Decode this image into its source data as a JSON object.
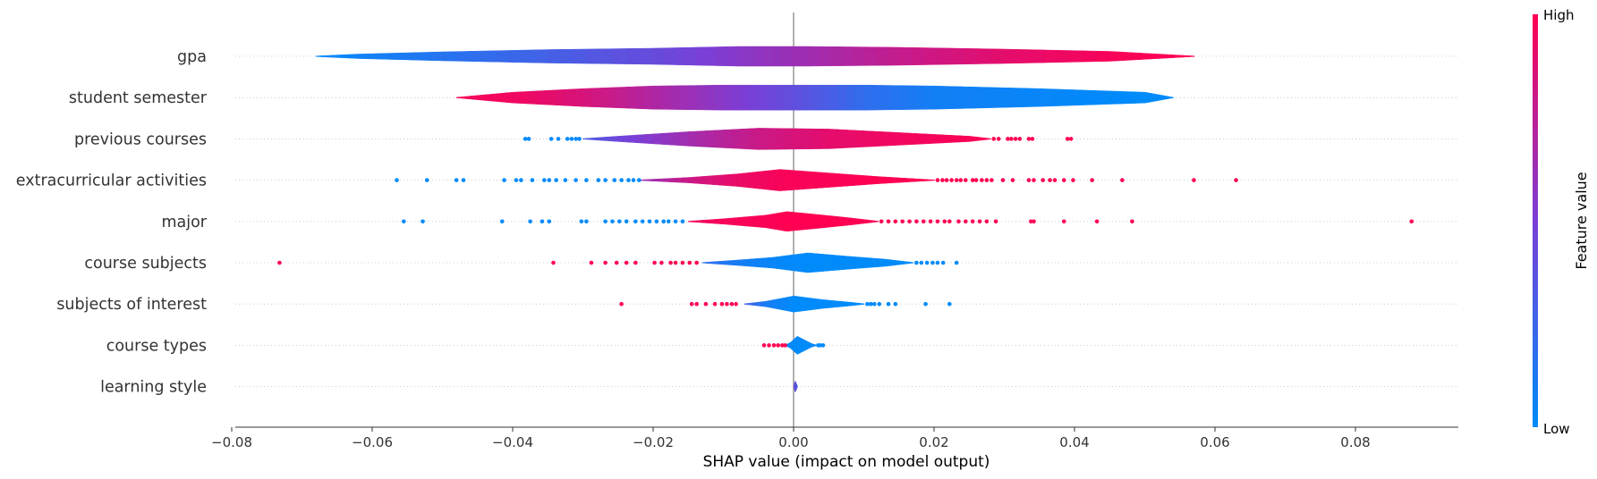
{
  "chart_data": {
    "type": "violin",
    "title": "",
    "xlabel": "SHAP value (impact on model output)",
    "ylabel": "",
    "xlim": [
      -0.081,
      0.095
    ],
    "x_ticks": [
      -0.08,
      -0.06,
      -0.04,
      -0.02,
      0.0,
      0.02,
      0.04,
      0.06,
      0.08
    ],
    "x_tick_labels": [
      "−0.08",
      "−0.06",
      "−0.04",
      "−0.02",
      "0.00",
      "0.02",
      "0.04",
      "0.06",
      "0.08"
    ],
    "colorbar": {
      "label": "Feature value",
      "high": "High",
      "low": "Low",
      "colors": [
        "#008bfb",
        "#7a3fd6",
        "#ff0052"
      ]
    },
    "features": [
      {
        "name": "gpa",
        "profile": [
          [
            -0.068,
            0.3,
            0
          ],
          [
            -0.062,
            2.5,
            0.06
          ],
          [
            -0.05,
            5,
            0.15
          ],
          [
            -0.035,
            7.5,
            0.28
          ],
          [
            -0.02,
            9,
            0.42
          ],
          [
            -0.008,
            11,
            0.55
          ],
          [
            0.002,
            11,
            0.64
          ],
          [
            0.015,
            10,
            0.78
          ],
          [
            0.03,
            8,
            0.9
          ],
          [
            0.045,
            5.5,
            0.97
          ],
          [
            0.057,
            0.3,
            1
          ]
        ],
        "low_dots": [],
        "high_dots": []
      },
      {
        "name": "student semester",
        "profile": [
          [
            -0.048,
            0.3,
            0.97
          ],
          [
            -0.04,
            6,
            0.95
          ],
          [
            -0.03,
            10,
            0.85
          ],
          [
            -0.02,
            13,
            0.7
          ],
          [
            -0.01,
            14,
            0.55
          ],
          [
            0.0,
            14,
            0.4
          ],
          [
            0.01,
            14,
            0.2
          ],
          [
            0.02,
            13,
            0.08
          ],
          [
            0.035,
            10,
            0.03
          ],
          [
            0.05,
            6,
            0
          ],
          [
            0.054,
            0.3,
            0
          ]
        ],
        "low_dots": [],
        "high_dots": []
      },
      {
        "name": "previous courses",
        "profile": [
          [
            -0.03,
            0.3,
            0.3
          ],
          [
            -0.025,
            3,
            0.45
          ],
          [
            -0.015,
            8,
            0.65
          ],
          [
            -0.005,
            12,
            0.8
          ],
          [
            0.005,
            11,
            0.9
          ],
          [
            0.015,
            7,
            0.95
          ],
          [
            0.025,
            3,
            0.98
          ],
          [
            0.028,
            0.3,
            1
          ]
        ],
        "low_dots": [
          -0.0382,
          -0.0377,
          -0.0345,
          -0.0335,
          -0.0322,
          -0.0316,
          -0.031,
          -0.0305
        ],
        "high_dots": [
          0.0285,
          0.0292,
          0.0305,
          0.031,
          0.0316,
          0.0322,
          0.0335,
          0.034,
          0.039,
          0.0395
        ]
      },
      {
        "name": "extracurricular activities",
        "profile": [
          [
            -0.022,
            0.3,
            0.6
          ],
          [
            -0.015,
            3,
            0.8
          ],
          [
            -0.008,
            7,
            0.92
          ],
          [
            -0.002,
            12,
            0.97
          ],
          [
            0.005,
            8,
            0.98
          ],
          [
            0.012,
            4,
            1
          ],
          [
            0.02,
            0.3,
            1
          ]
        ],
        "low_dots": [
          -0.0565,
          -0.0522,
          -0.048,
          -0.047,
          -0.0412,
          -0.0395,
          -0.0388,
          -0.0372,
          -0.0355,
          -0.0348,
          -0.0338,
          -0.0325,
          -0.031,
          -0.0295,
          -0.0278,
          -0.0268,
          -0.0255,
          -0.0245,
          -0.0235,
          -0.0228,
          -0.022
        ],
        "high_dots": [
          0.0205,
          0.0212,
          0.0218,
          0.0225,
          0.0232,
          0.0238,
          0.0245,
          0.0255,
          0.026,
          0.0268,
          0.0275,
          0.0282,
          0.0298,
          0.0312,
          0.0335,
          0.0342,
          0.0355,
          0.0365,
          0.0372,
          0.0385,
          0.0398,
          0.0425,
          0.0468,
          0.057,
          0.063
        ]
      },
      {
        "name": "major",
        "profile": [
          [
            -0.015,
            0.3,
            0.95
          ],
          [
            -0.01,
            3,
            0.97
          ],
          [
            -0.004,
            7,
            0.98
          ],
          [
            -0.001,
            11,
            1
          ],
          [
            0.003,
            8,
            1
          ],
          [
            0.008,
            4,
            1
          ],
          [
            0.012,
            0.3,
            1
          ]
        ],
        "low_dots": [
          -0.0555,
          -0.0528,
          -0.0415,
          -0.0375,
          -0.0358,
          -0.0348,
          -0.0302,
          -0.0295,
          -0.0268,
          -0.0258,
          -0.0248,
          -0.0238,
          -0.0225,
          -0.0215,
          -0.0205,
          -0.0195,
          -0.0185,
          -0.0178,
          -0.0168,
          -0.0158
        ],
        "high_dots": [
          0.0125,
          0.0135,
          0.0145,
          0.0155,
          0.0165,
          0.0175,
          0.0185,
          0.0195,
          0.0205,
          0.0215,
          0.0222,
          0.0235,
          0.0245,
          0.0255,
          0.0265,
          0.0275,
          0.0288,
          0.0338,
          0.0342,
          0.0385,
          0.0432,
          0.0482,
          0.088
        ]
      },
      {
        "name": "course subjects",
        "profile": [
          [
            -0.013,
            0.3,
            0.2
          ],
          [
            -0.008,
            3,
            0.1
          ],
          [
            -0.003,
            6,
            0.03
          ],
          [
            0.002,
            11,
            0
          ],
          [
            0.008,
            7,
            0
          ],
          [
            0.013,
            4,
            0
          ],
          [
            0.017,
            0.3,
            0
          ]
        ],
        "low_dots": [
          0.0175,
          0.0182,
          0.019,
          0.0198,
          0.0205,
          0.0213,
          0.0232
        ],
        "high_dots": [
          -0.0732,
          -0.0342,
          -0.0288,
          -0.0268,
          -0.0252,
          -0.0238,
          -0.0225,
          -0.0198,
          -0.0188,
          -0.0175,
          -0.0168,
          -0.0158,
          -0.0148,
          -0.0138
        ]
      },
      {
        "name": "subjects of interest",
        "profile": [
          [
            -0.007,
            0.3,
            0.3
          ],
          [
            -0.004,
            3,
            0.1
          ],
          [
            0.0,
            9,
            0
          ],
          [
            0.004,
            5,
            0
          ],
          [
            0.008,
            2,
            0
          ],
          [
            0.01,
            0.3,
            0
          ]
        ],
        "low_dots": [
          0.0105,
          0.011,
          0.0115,
          0.0122,
          0.0135,
          0.0145,
          0.0188,
          0.0222
        ],
        "high_dots": [
          -0.0245,
          -0.0145,
          -0.0138,
          -0.0125,
          -0.0112,
          -0.0102,
          -0.0095,
          -0.0088,
          -0.0082
        ]
      },
      {
        "name": "course types",
        "profile": [
          [
            -0.0012,
            0.3,
            0.1
          ],
          [
            -0.0005,
            3,
            0.02
          ],
          [
            0.0005,
            10,
            0
          ],
          [
            0.0015,
            6,
            0
          ],
          [
            0.0025,
            2,
            0
          ],
          [
            0.0032,
            0.3,
            0
          ]
        ],
        "low_dots": [
          0.0035,
          0.0038,
          0.0042
        ],
        "high_dots": [
          -0.0042,
          -0.0035,
          -0.0028,
          -0.0022,
          -0.0016,
          -0.0012
        ]
      },
      {
        "name": "learning style",
        "profile": [
          [
            0.0,
            0.5,
            0.5
          ],
          [
            0.0002,
            6,
            0.4
          ],
          [
            0.0005,
            0.5,
            0.3
          ]
        ],
        "low_dots": [],
        "high_dots": []
      }
    ]
  }
}
